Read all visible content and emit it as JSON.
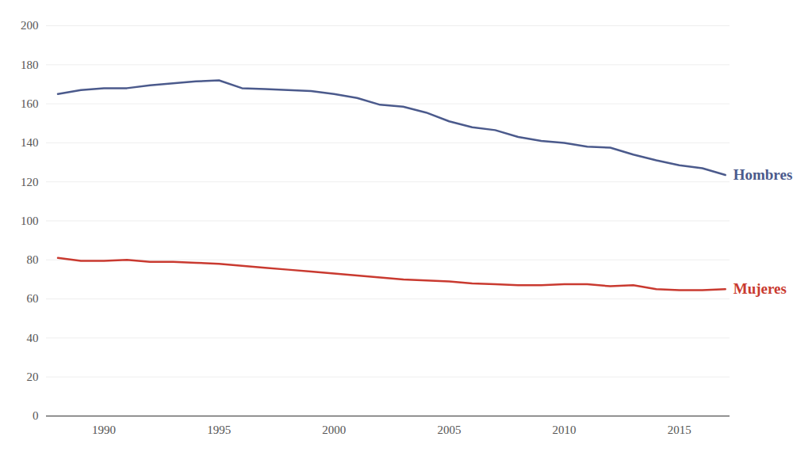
{
  "chart_data": {
    "type": "line",
    "x": [
      1988,
      1989,
      1990,
      1991,
      1992,
      1993,
      1994,
      1995,
      1996,
      1997,
      1998,
      1999,
      2000,
      2001,
      2002,
      2003,
      2004,
      2005,
      2006,
      2007,
      2008,
      2009,
      2010,
      2011,
      2012,
      2013,
      2014,
      2015,
      2016,
      2017
    ],
    "series": [
      {
        "name": "Hombres",
        "color": "#4b5a8c",
        "values": [
          165,
          167,
          168,
          168,
          169.5,
          170.5,
          171.5,
          172,
          168,
          167.5,
          167,
          166.5,
          165,
          163,
          159.5,
          158.5,
          155.5,
          151,
          148,
          146.5,
          143,
          141,
          140,
          138,
          137.5,
          134,
          131,
          128.5,
          127,
          123.5
        ]
      },
      {
        "name": "Mujeres",
        "color": "#c93a30",
        "values": [
          81,
          79.5,
          79.5,
          80,
          79,
          79,
          78.5,
          78,
          77,
          76,
          75,
          74,
          73,
          72,
          71,
          70,
          69.5,
          69,
          68,
          67.5,
          67,
          67,
          67.5,
          67.5,
          66.5,
          67,
          65,
          64.5,
          64.5,
          65
        ]
      }
    ],
    "xlim": [
      1987.5,
      2017.2
    ],
    "xticks": [
      1990,
      1995,
      2000,
      2005,
      2010,
      2015
    ],
    "ylim": [
      0,
      200
    ],
    "yticks": [
      0,
      20,
      40,
      60,
      80,
      100,
      120,
      140,
      160,
      180,
      200
    ],
    "grid": true
  }
}
